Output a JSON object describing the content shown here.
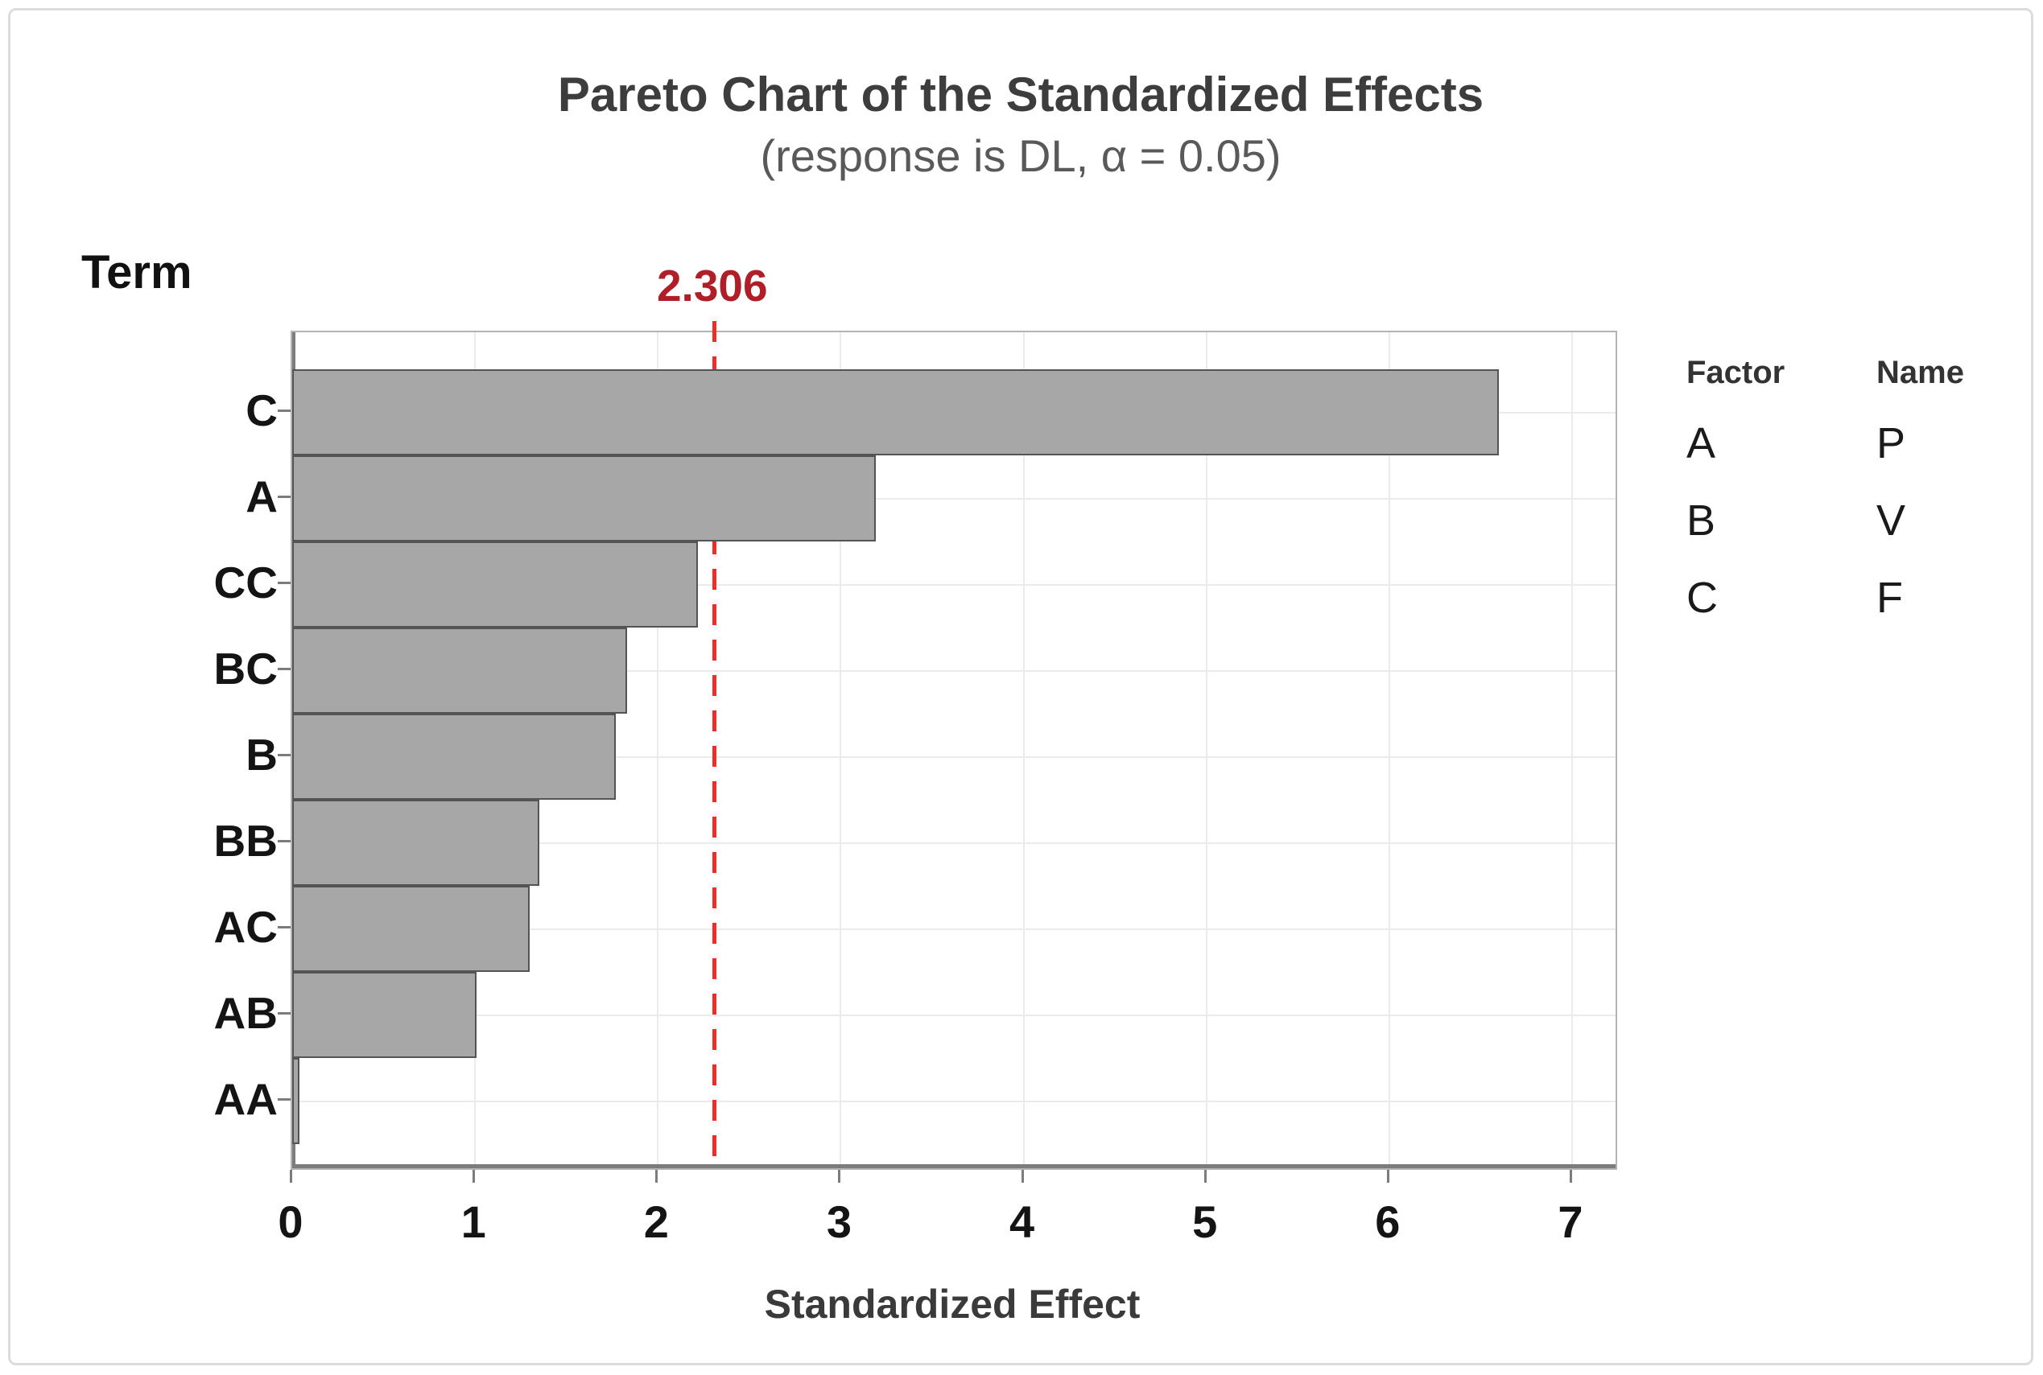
{
  "title": "Pareto Chart of the Standardized Effects",
  "subtitle": "(response is DL, α = 0.05)",
  "term_label": "Term",
  "x_axis_title": "Standardized Effect",
  "reference": {
    "label": "2.306",
    "value": 2.306
  },
  "legend": {
    "factor_header": "Factor",
    "name_header": "Name",
    "rows": [
      {
        "factor": "A",
        "name": "P"
      },
      {
        "factor": "B",
        "name": "V"
      },
      {
        "factor": "C",
        "name": "F"
      }
    ]
  },
  "chart_data": {
    "type": "bar",
    "orientation": "horizontal",
    "title": "Pareto Chart of the Standardized Effects",
    "subtitle": "(response is DL, α = 0.05)",
    "xlabel": "Standardized Effect",
    "ylabel": "Term",
    "categories": [
      "C",
      "A",
      "CC",
      "BC",
      "B",
      "BB",
      "AC",
      "AB",
      "AA"
    ],
    "values": [
      6.6,
      3.19,
      2.22,
      1.83,
      1.77,
      1.35,
      1.3,
      1.01,
      0.04
    ],
    "x_ticks": [
      0,
      1,
      2,
      3,
      4,
      5,
      6,
      7
    ],
    "xlim": [
      0,
      7.24
    ],
    "grid": true,
    "legend_position": "right",
    "reference_line": {
      "value": 2.306,
      "label": "2.306"
    },
    "colors": {
      "bar_fill": "#a7a7a7",
      "bar_border": "#545454",
      "reference_line": "#f32b26",
      "reference_label": "#b01e28",
      "gridline": "#ebebeb",
      "axis": "#7c7c7c",
      "plot_border": "#b3b3b3",
      "title_text": "#3d3d3d",
      "subtitle_text": "#595959"
    }
  }
}
